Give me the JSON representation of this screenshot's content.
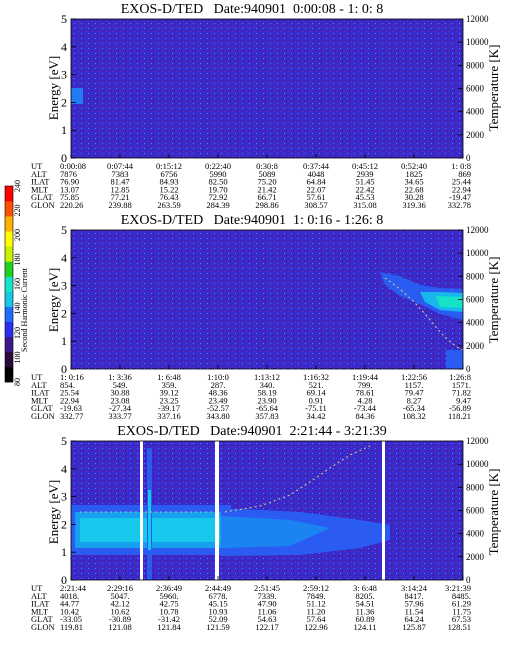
{
  "colorbar": {
    "label": "Second Harmonic Current",
    "ticks": [
      "80",
      "100",
      "120",
      "140",
      "160",
      "180",
      "200",
      "220",
      "240"
    ],
    "colors": [
      "#000000",
      "#2a0a3a",
      "#3d1a8c",
      "#2b2ff0",
      "#1f6cff",
      "#16c7e8",
      "#13e6c8",
      "#1ed21e",
      "#c8f000",
      "#ffff00",
      "#ffb000",
      "#ff5000",
      "#ff0000"
    ]
  },
  "chart_data": [
    {
      "type": "heatmap",
      "title": "EXOS-D/TED   Date:940901  0:00:08 - 1: 0: 8",
      "ylabel": "Energy [eV]",
      "y2label": "Temperature [K]",
      "ylim": [
        0,
        5
      ],
      "yticks": [
        "0",
        "1",
        "2",
        "3",
        "4",
        "5"
      ],
      "y2lim": [
        0,
        12000
      ],
      "y2ticks": [
        "0",
        "2000",
        "4000",
        "6000",
        "8000",
        "10000",
        "12000"
      ],
      "row_labels": [
        "UT",
        "ALT",
        "ILAT",
        "MLT",
        "GLAT",
        "GLON"
      ],
      "columns": [
        [
          "0:00:08",
          "7876",
          "76.90",
          "13.07",
          "75.85",
          "220.26"
        ],
        [
          "0:07:44",
          "7383",
          "81.47",
          "12.85",
          "77.21",
          "239.88"
        ],
        [
          "0:15:12",
          "6756",
          "84.93",
          "15.22",
          "76.43",
          "263.59"
        ],
        [
          "0:22:40",
          "5990",
          "82.50",
          "19.70",
          "72.92",
          "284.39"
        ],
        [
          "0:30:8",
          "5089",
          "75.20",
          "21.42",
          "66.71",
          "298.86"
        ],
        [
          "0:37:44",
          "4048",
          "64.84",
          "22.07",
          "57.61",
          "308.57"
        ],
        [
          "0:45:12",
          "2939",
          "51.45",
          "22.42",
          "45.53",
          "315.08"
        ],
        [
          "0:52:40",
          "1825",
          "34.65",
          "22.68",
          "30.28",
          "319.36"
        ],
        [
          "1: 0:8",
          "869",
          "25.44",
          "22.94",
          "-19.47",
          "332.78"
        ]
      ]
    },
    {
      "type": "heatmap",
      "title": "EXOS-D/TED   Date:940901  1: 0:16 - 1:26: 8",
      "ylabel": "Energy [eV]",
      "y2label": "Temperature [K]",
      "ylim": [
        0,
        5
      ],
      "yticks": [
        "0",
        "1",
        "2",
        "3",
        "4",
        "5"
      ],
      "y2lim": [
        0,
        12000
      ],
      "y2ticks": [
        "0",
        "2000",
        "4000",
        "6000",
        "8000",
        "10000",
        "12000"
      ],
      "row_labels": [
        "UT",
        "ALT",
        "ILAT",
        "MLT",
        "GLAT",
        "GLON"
      ],
      "columns": [
        [
          "1: 0:16",
          "854.",
          "25.54",
          "22.94",
          "-19.63",
          "332.77"
        ],
        [
          "1: 3:36",
          "549.",
          "30.88",
          "23.08",
          "-27.34",
          "333.77"
        ],
        [
          "1: 6:48",
          "359.",
          "39.12",
          "23.25",
          "-39.17",
          "337.16"
        ],
        [
          "1:10:0",
          "287.",
          "48.36",
          "23.49",
          "-52.57",
          "343.80"
        ],
        [
          "1:13:12",
          "340.",
          "58.19",
          "23.90",
          "-65.64",
          "357.83"
        ],
        [
          "1:16:32",
          "521.",
          "69.14",
          "0.91",
          "-75.11",
          "34.42"
        ],
        [
          "1:19:44",
          "799.",
          "78.61",
          "4.28",
          "-73.44",
          "84.36"
        ],
        [
          "1:22:56",
          "1157.",
          "79.47",
          "8.27",
          "-65.34",
          "108.32"
        ],
        [
          "1:26:8",
          "1571.",
          "71.82",
          "9.47",
          "-56.89",
          "118.21"
        ]
      ]
    },
    {
      "type": "heatmap",
      "title": "EXOS-D/TED   Date:940901  2:21:44 - 3:21:39",
      "ylabel": "Energy [eV]",
      "y2label": "Temperature [K]",
      "ylim": [
        0,
        5
      ],
      "yticks": [
        "0",
        "1",
        "2",
        "3",
        "4",
        "5"
      ],
      "y2lim": [
        0,
        12000
      ],
      "y2ticks": [
        "0",
        "2000",
        "4000",
        "6000",
        "8000",
        "10000",
        "12000"
      ],
      "row_labels": [
        "UT",
        "ALT",
        "ILAT",
        "MLT",
        "GLAT",
        "GLON"
      ],
      "columns": [
        [
          "2:21:44",
          "4018.",
          "44.77",
          "10.42",
          "-33.05",
          "119.81"
        ],
        [
          "2:29:16",
          "5047.",
          "42.12",
          "10.62",
          "-30.89",
          "121.08"
        ],
        [
          "2:36:49",
          "5960.",
          "42.75",
          "10.78",
          "-31.42",
          "121.84"
        ],
        [
          "2:44:49",
          "6778.",
          "45.15",
          "10.93",
          "52.09",
          "121.59"
        ],
        [
          "2:51:45",
          "7339.",
          "47.90",
          "11.06",
          "54.63",
          "122.17"
        ],
        [
          "2:59:12",
          "7849.",
          "51.12",
          "11.20",
          "57.64",
          "122.96"
        ],
        [
          "3: 6:48",
          "8205.",
          "54.51",
          "11.36",
          "60.89",
          "124.11"
        ],
        [
          "3:14:24",
          "8417.",
          "57.96",
          "11.54",
          "64.24",
          "125.87"
        ],
        [
          "3:21:39",
          "8485.",
          "61.29",
          "11.75",
          "67.53",
          "128.51"
        ]
      ]
    }
  ]
}
